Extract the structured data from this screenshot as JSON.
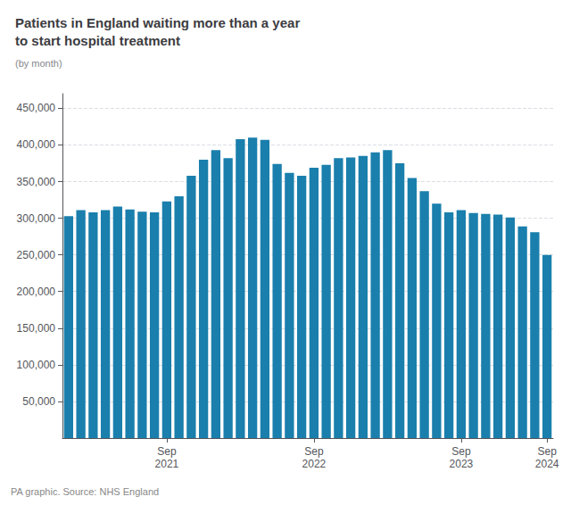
{
  "chart_data": {
    "type": "bar",
    "title": "Patients in England waiting more than a year\nto start hospital treatment",
    "subtitle": "(by month)",
    "source": "PA graphic. Source: NHS England",
    "categories": [
      null,
      null,
      null,
      null,
      null,
      null,
      null,
      null,
      "Sep\n2021",
      null,
      null,
      null,
      null,
      null,
      null,
      null,
      null,
      null,
      null,
      null,
      "Sep\n2022",
      null,
      null,
      null,
      null,
      null,
      null,
      null,
      null,
      null,
      null,
      null,
      "Sep\n2023",
      null,
      null,
      null,
      null,
      null,
      null,
      "Sep\n2024"
    ],
    "values": [
      303000,
      311000,
      308000,
      311000,
      316000,
      312000,
      309000,
      308000,
      323000,
      330000,
      358000,
      380000,
      393000,
      382000,
      408000,
      410000,
      407000,
      374000,
      362000,
      358000,
      369000,
      373000,
      382000,
      383000,
      385000,
      390000,
      393000,
      375000,
      355000,
      337000,
      320000,
      308000,
      311000,
      307000,
      306000,
      305000,
      301000,
      289000,
      281000,
      250000
    ],
    "color": "#1a7fac",
    "ylim": [
      0,
      470000
    ],
    "yticks": [
      {
        "value": 50000,
        "label": "50,000"
      },
      {
        "value": 100000,
        "label": "100,000"
      },
      {
        "value": 150000,
        "label": "150,000"
      },
      {
        "value": 200000,
        "label": "200,000"
      },
      {
        "value": 250000,
        "label": "250,000"
      },
      {
        "value": 300000,
        "label": "300,000"
      },
      {
        "value": 350000,
        "label": "350,000"
      },
      {
        "value": 400000,
        "label": "400,000"
      },
      {
        "value": 450000,
        "label": "450,000"
      }
    ],
    "grid": true
  }
}
